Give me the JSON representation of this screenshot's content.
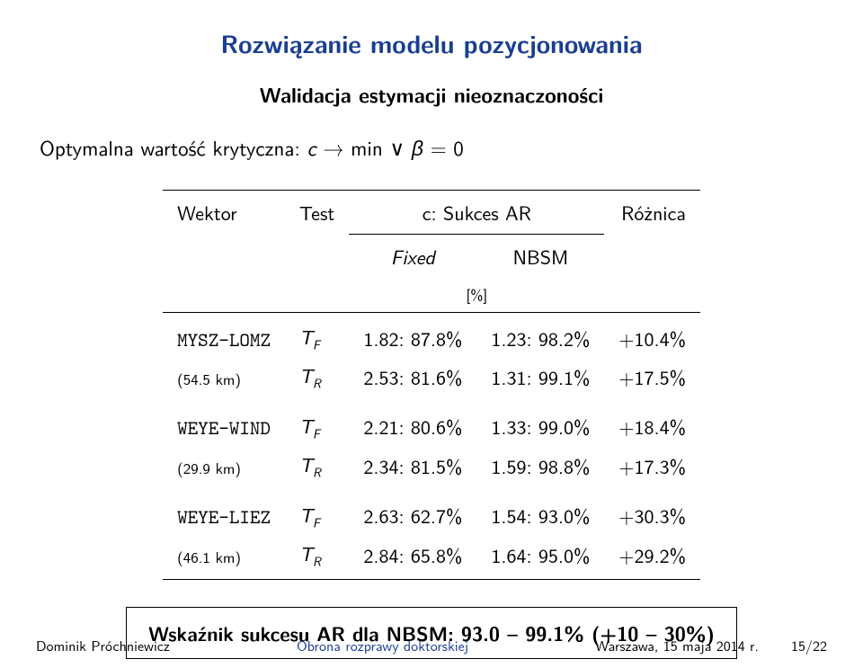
{
  "title": "Rozwiązanie modelu pozycjonowania",
  "subtitle": "Walidacja estymacji nieoznaczoności",
  "critline_html": "Optymalna wartość krytyczna: <span class='i'>c</span> → min ∨ <span class='i'>β</span> = 0",
  "table": {
    "head": {
      "wektor": "Wektor",
      "test": "Test",
      "c_sukces": "c: Sukces AR",
      "roznica": "Różnica",
      "fixed": "Fixed",
      "nbsm": "NBSM",
      "pct": "[%]"
    },
    "groups": [
      {
        "code": "MYSZ-LOMZ",
        "dist": "(54.5 km)",
        "rows": [
          {
            "test": "T",
            "sub": "F",
            "fixed": "1.82: 87.8%",
            "nbsm": "1.23: 98.2%",
            "diff": "+10.4%"
          },
          {
            "test": "T",
            "sub": "R",
            "fixed": "2.53: 81.6%",
            "nbsm": "1.31: 99.1%",
            "diff": "+17.5%"
          }
        ]
      },
      {
        "code": "WEYE-WIND",
        "dist": "(29.9 km)",
        "rows": [
          {
            "test": "T",
            "sub": "F",
            "fixed": "2.21: 80.6%",
            "nbsm": "1.33: 99.0%",
            "diff": "+18.4%"
          },
          {
            "test": "T",
            "sub": "R",
            "fixed": "2.34: 81.5%",
            "nbsm": "1.59: 98.8%",
            "diff": "+17.3%"
          }
        ]
      },
      {
        "code": "WEYE-LIEZ",
        "dist": "(46.1 km)",
        "rows": [
          {
            "test": "T",
            "sub": "F",
            "fixed": "2.63: 62.7%",
            "nbsm": "1.54: 93.0%",
            "diff": "+30.3%"
          },
          {
            "test": "T",
            "sub": "R",
            "fixed": "2.84: 65.8%",
            "nbsm": "1.64: 95.0%",
            "diff": "+29.2%"
          }
        ]
      }
    ]
  },
  "box": "Wskaźnik sukcesu AR dla NBSM: 93.0 – 99.1% (+10 – 30%)",
  "footer": {
    "author": "Dominik Próchniewicz",
    "title": "Obrona rozprawy doktorskiej",
    "date": "Warszawa, 15 maja 2014 r.",
    "page": "15/22"
  },
  "colors": {
    "accent": "#1a3f8f",
    "text": "#000000",
    "background": "#ffffff"
  }
}
